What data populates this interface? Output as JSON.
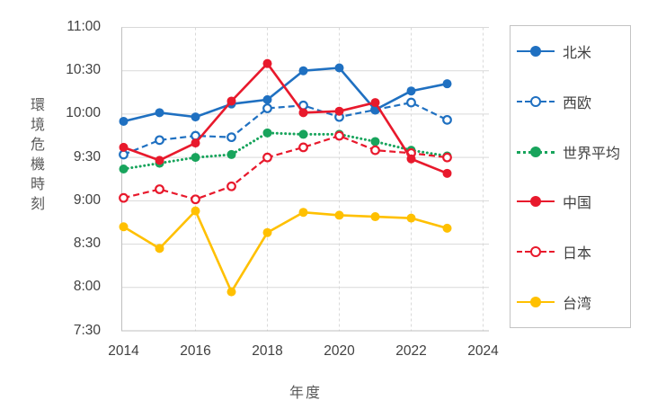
{
  "y_axis_title": "環境危機時刻",
  "x_axis_title": "年度",
  "colors": {
    "blue": "#1F70C1",
    "green": "#18A45C",
    "red": "#E8192C",
    "yellow": "#FFC000",
    "gridline": "#D9D9D9",
    "axis_line": "#BFBFBF",
    "tick_text": "#404040",
    "axis_title_text": "#595959"
  },
  "chart_data": {
    "type": "line",
    "title": "",
    "xlabel": "年度",
    "ylabel": "環境危機時刻",
    "x": [
      2014,
      2015,
      2016,
      2017,
      2018,
      2019,
      2020,
      2021,
      2022,
      2023
    ],
    "x_ticks": [
      2014,
      2016,
      2018,
      2020,
      2022,
      2024
    ],
    "xlim": [
      2014,
      2024
    ],
    "y_ticks": [
      "11:00",
      "10:30",
      "10:00",
      "9:30",
      "9:00",
      "8:30",
      "8:00",
      "7:30"
    ],
    "ylim": [
      "7:30",
      "11:00"
    ],
    "grid": "horizontal-solid, vertical-dashed",
    "legend_position": "right",
    "draw_order": [
      5,
      2,
      4,
      1,
      0,
      3
    ],
    "series": [
      {
        "name": "北米",
        "color": "#1F70C1",
        "line": "solid",
        "marker": "filled",
        "values": [
          "9:55",
          "10:01",
          "9:58",
          "10:07",
          "10:10",
          "10:30",
          "10:32",
          "10:03",
          "10:16",
          "10:21"
        ]
      },
      {
        "name": "西欧",
        "color": "#1F70C1",
        "line": "dashed",
        "marker": "open",
        "values": [
          "9:32",
          "9:42",
          "9:45",
          "9:44",
          "10:04",
          "10:06",
          "9:58",
          "10:03",
          "10:08",
          "9:56"
        ]
      },
      {
        "name": "世界平均",
        "color": "#18A45C",
        "line": "dotted",
        "marker": "filled",
        "values": [
          "9:22",
          "9:26",
          "9:30",
          "9:32",
          "9:47",
          "9:46",
          "9:46",
          "9:41",
          "9:35",
          "9:31"
        ]
      },
      {
        "name": "中国",
        "color": "#E8192C",
        "line": "solid",
        "marker": "filled",
        "values": [
          "9:37",
          "9:28",
          "9:40",
          "10:09",
          "10:35",
          "10:01",
          "10:02",
          "10:08",
          "9:29",
          "9:19"
        ]
      },
      {
        "name": "日本",
        "color": "#E8192C",
        "line": "dashed",
        "marker": "open",
        "values": [
          "9:02",
          "9:08",
          "9:01",
          "9:10",
          "9:30",
          "9:37",
          "9:45",
          "9:35",
          "9:33",
          "9:30"
        ]
      },
      {
        "name": "台湾",
        "color": "#FFC000",
        "line": "solid",
        "marker": "filled",
        "values": [
          "8:42",
          "8:27",
          "8:53",
          "7:57",
          "8:38",
          "8:52",
          "8:50",
          "8:49",
          "8:48",
          "8:41"
        ]
      }
    ]
  }
}
